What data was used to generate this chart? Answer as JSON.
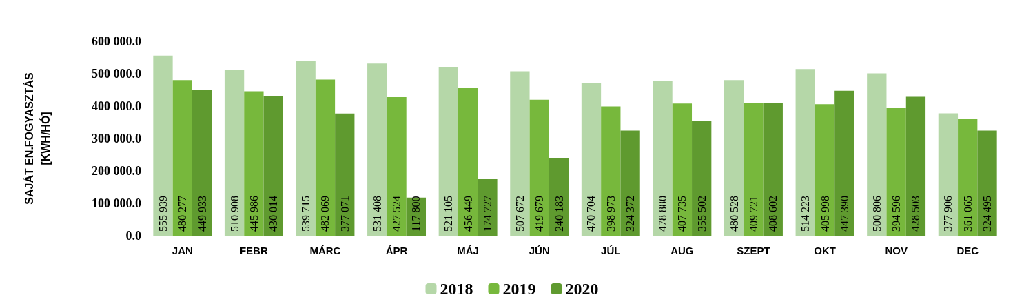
{
  "chart_data": {
    "type": "bar",
    "ylabel": "SAJÁT EN.FOGYASZTÁS\n[KWH/HÓ]",
    "categories": [
      "JAN",
      "FEBR",
      "MÁRC",
      "ÁPR",
      "MÁJ",
      "JÚN",
      "JÚL",
      "AUG",
      "SZEPT",
      "OKT",
      "NOV",
      "DEC"
    ],
    "series": [
      {
        "name": "2018",
        "color": "#b5d7a8",
        "values": [
          555939,
          510908,
          539715,
          531408,
          521105,
          507672,
          470704,
          478880,
          480528,
          514223,
          500806,
          377906
        ],
        "value_labels": [
          "555 939",
          "510 908",
          "539 715",
          "531 408",
          "521 105",
          "507 672",
          "470 704",
          "478 880",
          "480 528",
          "514 223",
          "500 806",
          "377 906"
        ]
      },
      {
        "name": "2019",
        "color": "#77b83c",
        "values": [
          480277,
          445986,
          482069,
          427524,
          456449,
          419679,
          398973,
          407735,
          409721,
          405998,
          394596,
          361065
        ],
        "value_labels": [
          "480 277",
          "445 986",
          "482 069",
          "427 524",
          "456 449",
          "419 679",
          "398 973",
          "407 735",
          "409 721",
          "405 998",
          "394 596",
          "361 065"
        ]
      },
      {
        "name": "2020",
        "color": "#5f9a2f",
        "values": [
          449933,
          430014,
          377071,
          117800,
          174727,
          240183,
          324372,
          355502,
          408602,
          447390,
          428503,
          324495
        ],
        "value_labels": [
          "449 933",
          "430 014",
          "377 071",
          "117 800",
          "174 727",
          "240 183",
          "324 372",
          "355 502",
          "408 602",
          "447 390",
          "428 503",
          "324 495"
        ]
      }
    ],
    "ylim": [
      0,
      600000
    ],
    "yticks": [
      {
        "value": 0,
        "label": "0.0"
      },
      {
        "value": 100000,
        "label": "100 000.0"
      },
      {
        "value": 200000,
        "label": "200 000.0"
      },
      {
        "value": 300000,
        "label": "300 000.0"
      },
      {
        "value": 400000,
        "label": "400 000.0"
      },
      {
        "value": 500000,
        "label": "500 000.0"
      },
      {
        "value": 600000,
        "label": "600 000.0"
      }
    ],
    "grid": false,
    "legend": "bottom"
  }
}
